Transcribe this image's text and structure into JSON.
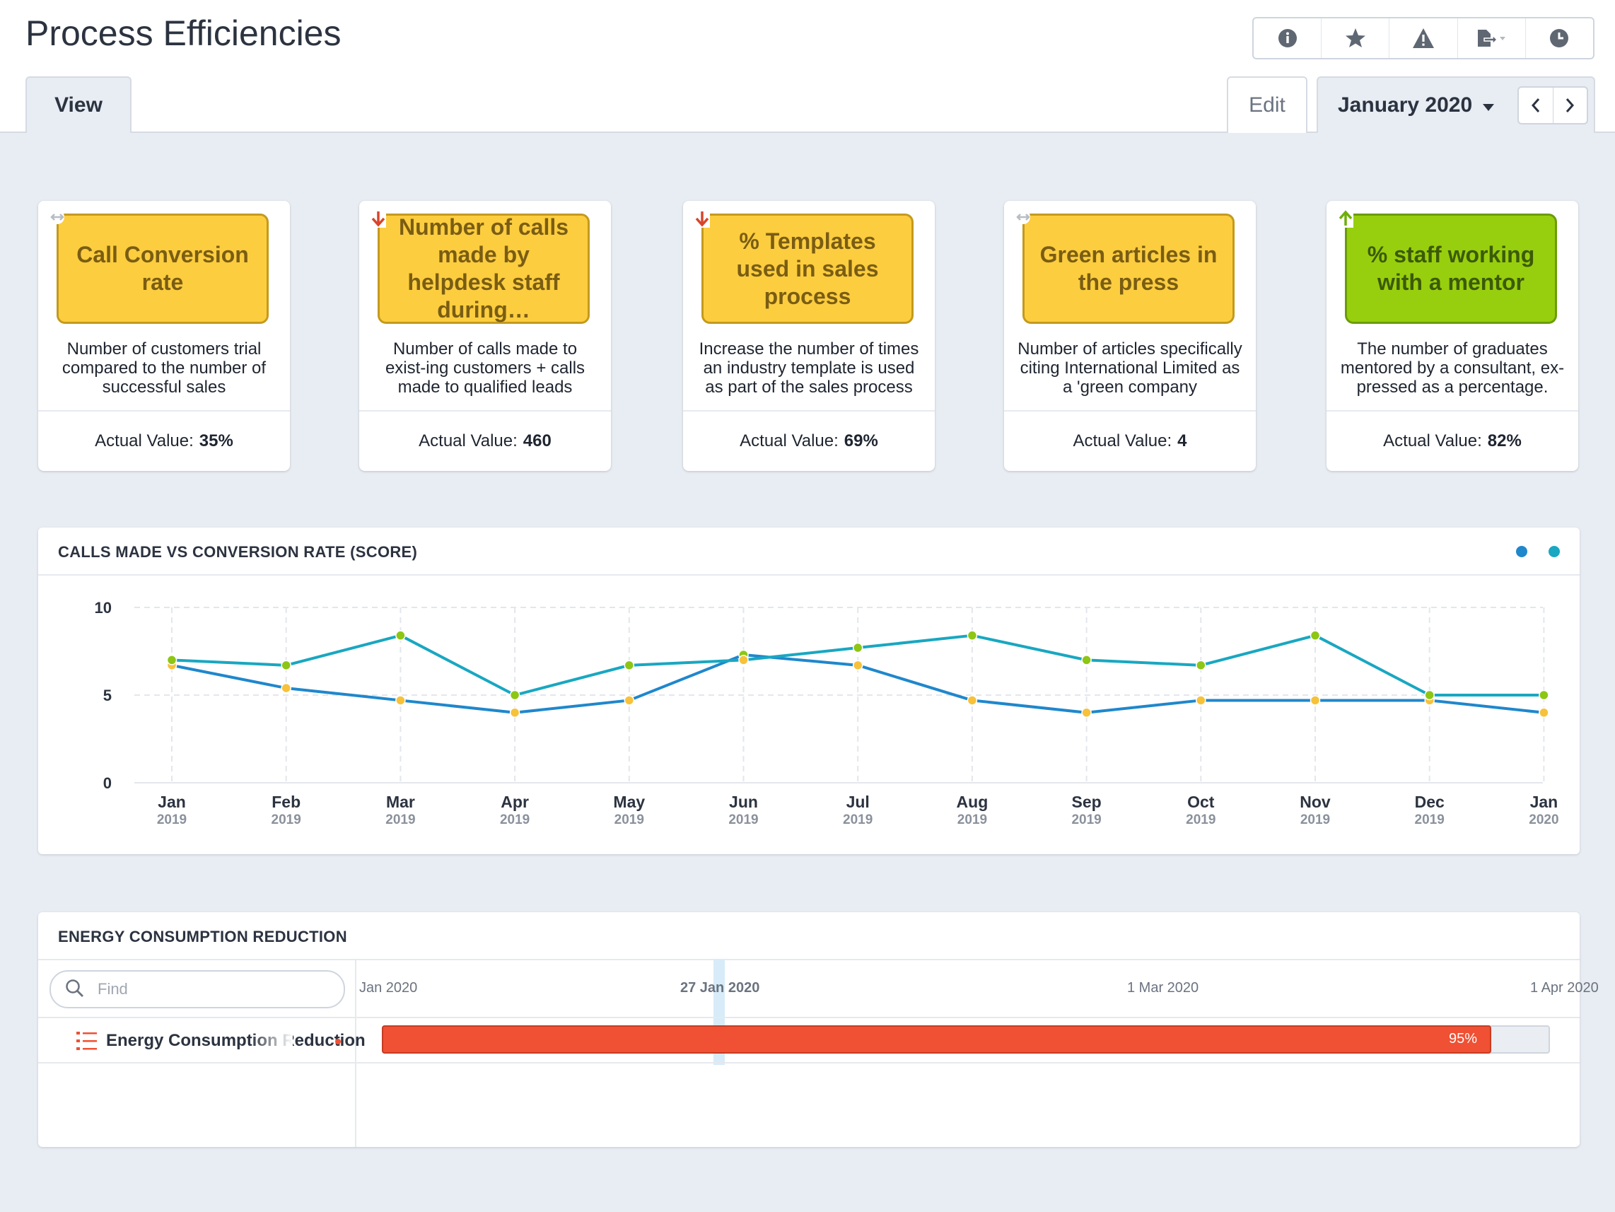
{
  "header": {
    "title": "Process Efficiencies",
    "toolbar": [
      {
        "name": "info-icon"
      },
      {
        "name": "star-icon"
      },
      {
        "name": "warning-icon"
      },
      {
        "name": "export-icon"
      },
      {
        "name": "clock-icon"
      }
    ]
  },
  "tabs": {
    "view": "View",
    "edit": "Edit"
  },
  "period": {
    "label": "January 2020"
  },
  "kpis": [
    {
      "title": "Call Conversion rate",
      "trend": "neutral",
      "color": "yellow",
      "description": "Number of customers trial compared to the number of successful sales",
      "actual_label": "Actual Value:",
      "actual_value": "35%"
    },
    {
      "title": "Number of calls made by helpdesk staff during…",
      "trend": "down",
      "color": "yellow",
      "description": "Number of calls made to exist-ing customers + calls made to qualified leads",
      "actual_label": "Actual Value:",
      "actual_value": "460"
    },
    {
      "title": "% Templates used in sales process",
      "trend": "down",
      "color": "yellow",
      "description": "Increase the number of times an industry template is used as part of the sales process",
      "actual_label": "Actual Value:",
      "actual_value": "69%"
    },
    {
      "title": "Green articles in the press",
      "trend": "neutral",
      "color": "yellow",
      "description": "Number of articles specifically citing International Limited as a 'green company",
      "actual_label": "Actual Value:",
      "actual_value": "4"
    },
    {
      "title": "% staff working with a mentor",
      "trend": "up",
      "color": "green",
      "description": "The number of graduates mentored by a consultant, ex-pressed as a percentage.",
      "actual_label": "Actual Value:",
      "actual_value": "82%"
    }
  ],
  "chart_panel": {
    "title": "CALLS MADE VS CONVERSION RATE (SCORE)"
  },
  "chart_data": {
    "type": "line",
    "title": "CALLS MADE VS CONVERSION RATE (SCORE)",
    "categories": [
      "Jan",
      "Feb",
      "Mar",
      "Apr",
      "May",
      "Jun",
      "Jul",
      "Aug",
      "Sep",
      "Oct",
      "Nov",
      "Dec",
      "Jan"
    ],
    "category_years": [
      "2019",
      "2019",
      "2019",
      "2019",
      "2019",
      "2019",
      "2019",
      "2019",
      "2019",
      "2019",
      "2019",
      "2019",
      "2020"
    ],
    "ylim": [
      0,
      10
    ],
    "yticks": [
      0,
      5,
      10
    ],
    "grid": true,
    "legend": "top-right",
    "series": [
      {
        "color": "#1f87cc",
        "values": [
          6.7,
          5.4,
          4.7,
          4.0,
          4.7,
          7.3,
          6.7,
          4.7,
          4.0,
          4.7,
          4.7,
          4.7,
          4.0
        ]
      },
      {
        "color": "#19a7c1",
        "values": [
          7.0,
          6.7,
          8.4,
          5.0,
          6.7,
          7.0,
          7.7,
          8.4,
          7.0,
          6.7,
          8.4,
          5.0,
          5.0
        ]
      }
    ]
  },
  "gantt": {
    "title": "ENERGY CONSUMPTION REDUCTION",
    "search_placeholder": "Find",
    "dates": [
      "Jan 2020",
      "27 Jan 2020",
      "1 Mar 2020",
      "1 Apr 2020"
    ],
    "task": {
      "name": "Energy Consumption Reduction",
      "progress": 0.95,
      "progress_label": "95%"
    }
  }
}
